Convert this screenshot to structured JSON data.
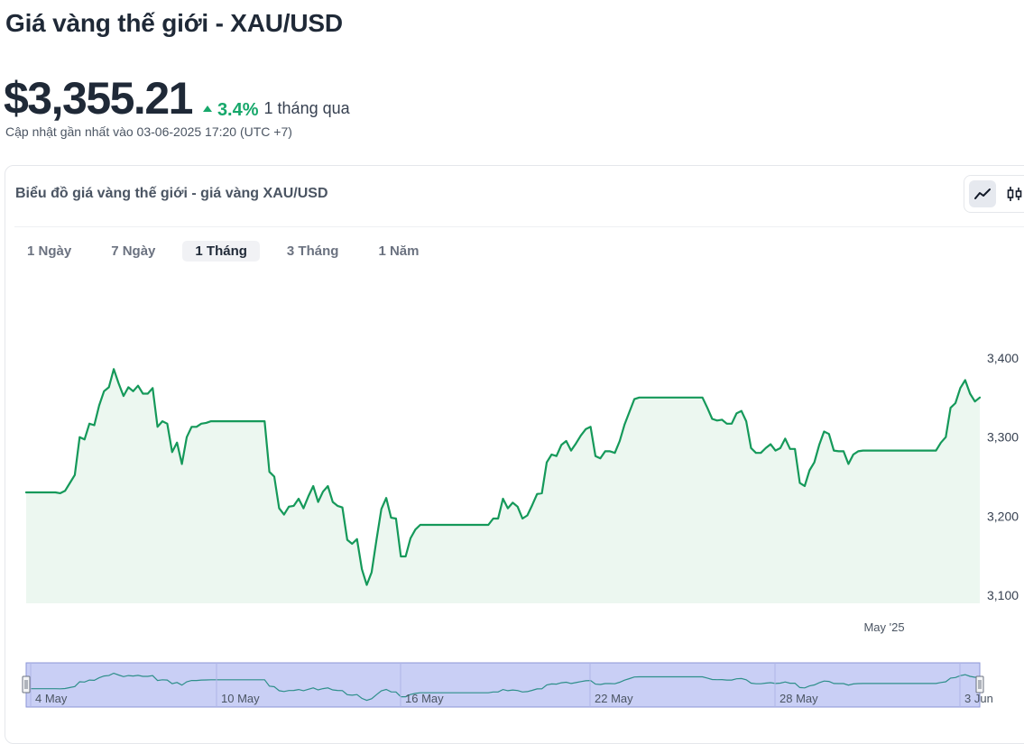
{
  "page": {
    "title": "Giá vàng thế giới - XAU/USD",
    "price": "$3,355.21",
    "change_pct": "3.4%",
    "change_period": "1 tháng qua",
    "updated": "Cập nhật gần nhất vào 03-06-2025 17:20 (UTC +7)"
  },
  "card": {
    "title": "Biểu đồ giá vàng thế giới - giá vàng XAU/USD",
    "tabs": [
      {
        "label": "1 Ngày",
        "active": false
      },
      {
        "label": "7 Ngày",
        "active": false
      },
      {
        "label": "1 Tháng",
        "active": true
      },
      {
        "label": "3 Tháng",
        "active": false
      },
      {
        "label": "1 Năm",
        "active": false
      }
    ],
    "chart_types": [
      {
        "icon": "line-chart-icon",
        "active": true
      },
      {
        "icon": "candlestick-icon",
        "active": false
      }
    ]
  },
  "colors": {
    "line": "#15995a",
    "area": "#ecf7f0",
    "accent_up": "#17a86b",
    "navigator_fill": "#c9cff5",
    "navigator_border": "#8b95d6"
  },
  "chart_data": {
    "type": "area",
    "series": [
      {
        "values": [
          3230,
          3230,
          3230,
          3230,
          3230,
          3230,
          3230,
          3229,
          3232,
          3242,
          3252,
          3300,
          3297,
          3317,
          3315,
          3340,
          3358,
          3363,
          3386,
          3368,
          3352,
          3363,
          3358,
          3365,
          3355,
          3355,
          3362,
          3313,
          3320,
          3317,
          3281,
          3293,
          3266,
          3300,
          3313,
          3313,
          3317,
          3318,
          3320,
          3320,
          3320,
          3320,
          3320,
          3320,
          3320,
          3320,
          3320,
          3320,
          3320,
          3320,
          3256,
          3250,
          3210,
          3202,
          3212,
          3213,
          3222,
          3210,
          3225,
          3238,
          3218,
          3231,
          3238,
          3218,
          3213,
          3211,
          3170,
          3165,
          3171,
          3133,
          3113,
          3129,
          3170,
          3209,
          3223,
          3198,
          3197,
          3149,
          3149,
          3172,
          3183,
          3189,
          3189,
          3189,
          3189,
          3189,
          3189,
          3189,
          3189,
          3189,
          3189,
          3189,
          3189,
          3189,
          3189,
          3189,
          3197,
          3197,
          3222,
          3210,
          3217,
          3212,
          3197,
          3201,
          3214,
          3228,
          3229,
          3268,
          3278,
          3276,
          3290,
          3295,
          3283,
          3292,
          3302,
          3310,
          3313,
          3276,
          3273,
          3282,
          3282,
          3280,
          3295,
          3316,
          3332,
          3348,
          3350,
          3350,
          3350,
          3350,
          3350,
          3350,
          3350,
          3350,
          3350,
          3350,
          3350,
          3350,
          3350,
          3350,
          3337,
          3323,
          3321,
          3322,
          3317,
          3317,
          3330,
          3333,
          3320,
          3286,
          3280,
          3280,
          3286,
          3291,
          3283,
          3286,
          3298,
          3285,
          3285,
          3242,
          3238,
          3258,
          3268,
          3290,
          3307,
          3304,
          3283,
          3282,
          3282,
          3266,
          3278,
          3282,
          3283,
          3283,
          3283,
          3283,
          3283,
          3283,
          3283,
          3283,
          3283,
          3283,
          3283,
          3283,
          3283,
          3283,
          3283,
          3283,
          3293,
          3300,
          3337,
          3343,
          3362,
          3372,
          3355,
          3345,
          3350
        ]
      }
    ],
    "ylim": [
      3100,
      3400
    ],
    "y_ticks": [
      "3,100",
      "3,200",
      "3,300",
      "3,400"
    ],
    "x_period_label": "May '25",
    "navigator_labels": [
      "4 May",
      "10 May",
      "16 May",
      "22 May",
      "28 May",
      "3 Jun"
    ],
    "grid": false,
    "legend": "none"
  }
}
